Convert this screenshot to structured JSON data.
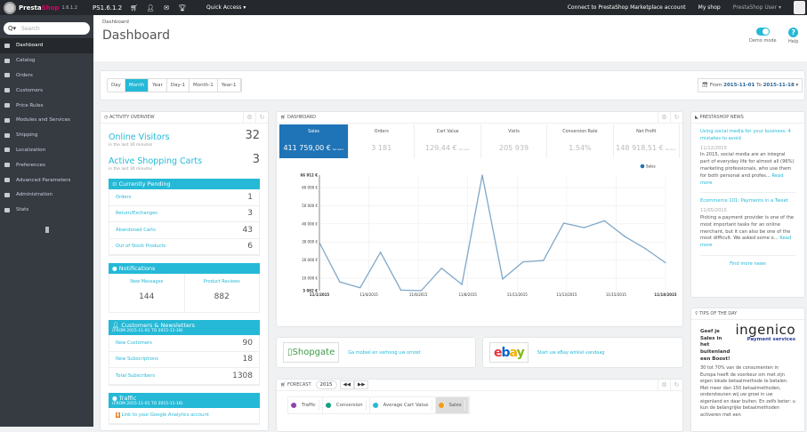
{
  "topbar": {
    "brand_a": "Presta",
    "brand_b": "Shop",
    "version": "1.6.1.2",
    "shop_version": "PS1.6.1.2",
    "icons": [
      "cart-icon",
      "user-icon",
      "envelope-icon",
      "trophy-icon"
    ],
    "quick_access": "Quick Access ▾",
    "connect": "Connect to PrestaShop Marketplace account",
    "my_shop": "My shop",
    "user": "PrestaShop User ▾"
  },
  "sidebar": {
    "search_placeholder": "Search",
    "search_icon": "Q▾",
    "items": [
      {
        "label": "Dashboard",
        "active": true
      },
      {
        "label": "Catalog"
      },
      {
        "label": "Orders"
      },
      {
        "label": "Customers"
      },
      {
        "label": "Price Rules"
      },
      {
        "label": "Modules and Services"
      },
      {
        "label": "Shipping"
      },
      {
        "label": "Localization"
      },
      {
        "label": "Preferences"
      },
      {
        "label": "Advanced Parameters"
      },
      {
        "label": "Administration"
      },
      {
        "label": "Stats"
      }
    ]
  },
  "header": {
    "breadcrumb": "Dashboard",
    "title": "Dashboard",
    "demo_mode": "Demo mode",
    "demo_mode_on": true,
    "help": "Help",
    "help_glyph": "?"
  },
  "filters": {
    "periods": [
      "Day",
      "Month",
      "Year",
      "Day-1",
      "Month-1",
      "Year-1"
    ],
    "active": "Month",
    "from_label": "From",
    "from": "2015-11-01",
    "to_label": "To",
    "to": "2015-11-18"
  },
  "activity": {
    "title": "Activity overview",
    "online_visitors": {
      "label": "Online Visitors",
      "value": "32",
      "sub": "in the last 30 minutes"
    },
    "active_carts": {
      "label": "Active Shopping Carts",
      "value": "3",
      "sub": "in the last 30 minutes"
    },
    "pending": {
      "title": "Currently Pending",
      "rows": [
        {
          "k": "Orders",
          "v": "1"
        },
        {
          "k": "Return/Exchanges",
          "v": "3"
        },
        {
          "k": "Abandoned Carts",
          "v": "43"
        },
        {
          "k": "Out of Stock Products",
          "v": "6"
        }
      ]
    },
    "notifications": {
      "title": "Notifications",
      "messages_label": "New Messages",
      "messages": "144",
      "reviews_label": "Product Reviews",
      "reviews": "882"
    },
    "customers": {
      "title": "Customers & Newsletters",
      "sub": "(FROM 2015-11-01 TO 2015-11-18)",
      "rows": [
        {
          "k": "New Customers",
          "v": "90"
        },
        {
          "k": "New Subscriptions",
          "v": "18"
        },
        {
          "k": "Total Subscribers",
          "v": "1308"
        }
      ]
    },
    "traffic": {
      "title": "Traffic",
      "sub": "(FROM 2015-11-01 TO 2015-11-18)",
      "link": "Link to your Google Analytics account"
    }
  },
  "dashboard": {
    "title": "Dashboard",
    "kpis": [
      {
        "label": "Sales",
        "value": "411 759,00 €",
        "suffix": "tax excl.",
        "active": true
      },
      {
        "label": "Orders",
        "value": "3 181"
      },
      {
        "label": "Cart Value",
        "value": "129,44 €",
        "suffix": "tax excl."
      },
      {
        "label": "Visits",
        "value": "205 939"
      },
      {
        "label": "Conversion Rate",
        "value": "1.54%"
      },
      {
        "label": "Net Profit",
        "value": "148 918,51 €",
        "suffix": "tax excl."
      }
    ]
  },
  "chart_data": {
    "type": "line",
    "x": [
      "11/1/2015",
      "11/2/2015",
      "11/3/2015",
      "11/4/2015",
      "11/5/2015",
      "11/6/2015",
      "11/7/2015",
      "11/8/2015",
      "11/9/2015",
      "11/10/2015",
      "11/11/2015",
      "11/12/2015",
      "11/13/2015",
      "11/14/2015",
      "11/15/2015",
      "11/16/2015",
      "11/17/2015",
      "11/18/2015"
    ],
    "series": [
      {
        "name": "Sales",
        "values": [
          29600,
          7900,
          4700,
          24300,
          3400,
          3082,
          15500,
          6500,
          66912,
          9500,
          19000,
          19700,
          40400,
          37900,
          41700,
          33000,
          26400,
          18500
        ],
        "color": "#7fa8c9"
      }
    ],
    "y_ticks": [
      "3 082 €",
      "10 000 €",
      "20 000 €",
      "30 000 €",
      "40 000 €",
      "50 000 €",
      "60 000 €",
      "66 912 €"
    ],
    "y_tick_values": [
      3082,
      10000,
      20000,
      30000,
      40000,
      50000,
      60000,
      66912
    ],
    "x_ticks": [
      "11/1/2015",
      "11/4/2015",
      "11/6/2015",
      "11/8/2015",
      "11/11/2015",
      "11/13/2015",
      "11/15/2015",
      "11/18/2015"
    ],
    "ylim": [
      3082,
      66912
    ],
    "legend": "top-right",
    "grid": true,
    "legend_color": "#1f73b7"
  },
  "banners": {
    "shopgate": {
      "logo": "Shopgate",
      "text": "Ga mobiel en verhoog uw omzet"
    },
    "ebay": {
      "logo": "ebay",
      "text": "Start uw eBay winkel vandaag"
    }
  },
  "forecast": {
    "title": "Forecast",
    "year": "2015",
    "prev": "◀◀",
    "next": "▶▶",
    "legend": [
      {
        "label": "Traffic",
        "color": "#8e44ad"
      },
      {
        "label": "Conversion",
        "color": "#16a085"
      },
      {
        "label": "Average Cart Value",
        "color": "#25b9d7"
      },
      {
        "label": "Sales",
        "color": "#f39c12",
        "active": true
      }
    ]
  },
  "news": {
    "title": "PrestaShop News",
    "items": [
      {
        "title": "Using social media for your business: 4 mistakes to avoid",
        "date": "11/12/2015",
        "text": "In 2015, social media are an integral part of everyday life for almost all (96%) marketing professionals, who use them for both personal and profes...",
        "more": "Read more"
      },
      {
        "title": "Ecommerce 101: Payments in a Tweet",
        "date": "11/05/2015",
        "text": "Picking a payment provider is one of the most important tasks for an online merchant, but it can also be one of the most difficult. We asked some o...",
        "more": "Read more"
      }
    ],
    "find_more": "Find more news"
  },
  "tips": {
    "title": "Tips of the day",
    "headline": "Geef je Sales in het buitenland een Boost!",
    "logo": "ingenico",
    "logo_sub": "Payment services",
    "text": "30 tot 70% van de consumenten in Europa heeft de voorkeur om met zijn eigen lokale betaalmethode te betalen. Met meer dan 150 betaalmethoden, ondersteunen wij uw groei in uw eigenland en daar buiten. En zelfs beter: u kun de belangrijke betaalmethoden activeren met een"
  }
}
